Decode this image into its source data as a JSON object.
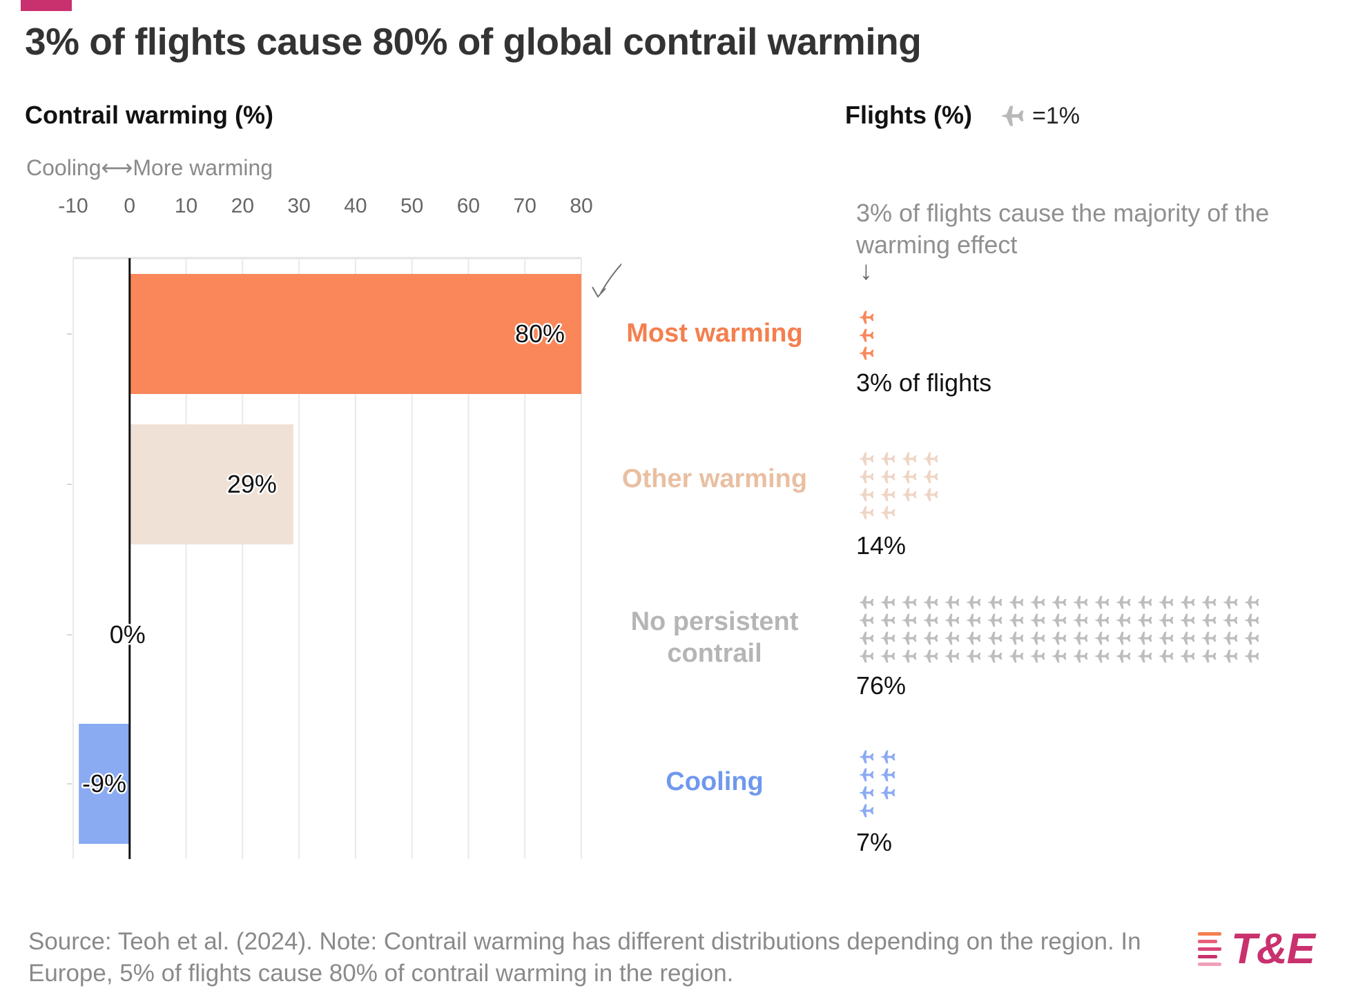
{
  "title": "3% of flights cause 80% of global contrail warming",
  "left_header": "Contrail warming (%)",
  "right_header": "Flights (%)",
  "legend": {
    "text": "=1%",
    "icon": "airplane-icon"
  },
  "direction_label": "Cooling⟷More warming",
  "annotation": "3% of flights cause the majority of the warming effect",
  "down_arrow": "↓",
  "colors": {
    "accent": "#c9316e",
    "most_warming": "#f9875a",
    "other_warming": "#f0e1d6",
    "no_persistent": "#bdbdbd",
    "cooling": "#8aaaf2",
    "label_most": "#f47f4f",
    "label_other": "#e9bfa2",
    "label_no": "#b5b5b5",
    "label_cooling": "#6f98ee",
    "plane_other": "#efd4c4",
    "legend_plane": "#b8b8b8"
  },
  "chart_data": {
    "type": "bar",
    "orientation": "horizontal",
    "categories": [
      "Most warming",
      "Other warming",
      "No persistent contrail",
      "Cooling"
    ],
    "values": [
      80,
      29,
      0,
      -9
    ],
    "data_labels": [
      "80%",
      "29%",
      "0%",
      "-9%"
    ],
    "xlim": [
      -10,
      80
    ],
    "xticks": [
      -10,
      0,
      10,
      20,
      30,
      40,
      50,
      60,
      70,
      80
    ],
    "xtick_labels": [
      "-10",
      "0",
      "10",
      "20",
      "30",
      "40",
      "50",
      "60",
      "70",
      "80"
    ],
    "grid": true,
    "flights": {
      "unit": "=1%",
      "values": [
        3,
        14,
        76,
        7
      ],
      "per_row": [
        1,
        4,
        19,
        2
      ],
      "labels": [
        "3% of flights",
        "14%",
        "76%",
        "7%"
      ]
    }
  },
  "categories": [
    {
      "label": "Most warming",
      "flights_label": "3% of flights"
    },
    {
      "label": "Other warming",
      "flights_label": "14%"
    },
    {
      "label": "No persistent contrail",
      "flights_label": "76%"
    },
    {
      "label": "Cooling",
      "flights_label": "7%"
    }
  ],
  "source": "Source: Teoh et al. (2024). Note: Contrail warming has different distributions depending on the region. In Europe, 5% of flights cause 80% of contrail warming in the region.",
  "logo": {
    "text": "T&E"
  }
}
